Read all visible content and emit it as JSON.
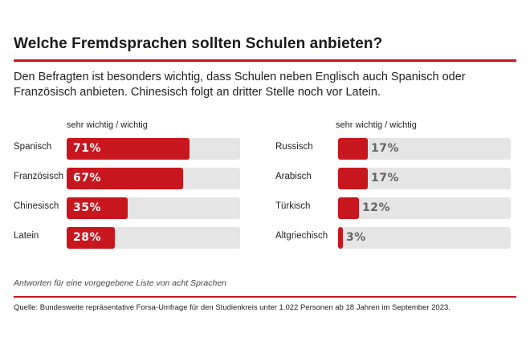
{
  "header": {
    "title": "Welche Fremdsprachen sollten Schulen anbieten?",
    "subtitle": "Den Befragten ist besonders wichtig, dass Schulen neben Englisch auch Spanisch oder Französisch anbieten. Chinesisch folgt an dritter Stelle noch vor Latein."
  },
  "footer": {
    "note": "Antworten für eine vorgegebene Liste von acht Sprachen",
    "source": "Quelle: Bundesweite repräsentative Forsa-Umfrage für den Studienkreis unter 1.022 Personen ab 18 Jahren im September 2023."
  },
  "colors": {
    "accent": "#c8161e",
    "track": "#e5e5e5"
  },
  "chart_data": [
    {
      "type": "bar",
      "orientation": "horizontal",
      "series_label": "sehr wichtig / wichtig",
      "categories": [
        "Spanisch",
        "Französisch",
        "Chinesisch",
        "Latein"
      ],
      "values": [
        71,
        67,
        35,
        28
      ],
      "value_labels": [
        "71%",
        "67%",
        "35%",
        "28%"
      ],
      "xlim": [
        0,
        100
      ]
    },
    {
      "type": "bar",
      "orientation": "horizontal",
      "series_label": "sehr wichtig / wichtig",
      "categories": [
        "Russisch",
        "Arabisch",
        "Türkisch",
        "Altgriechisch"
      ],
      "values": [
        17,
        17,
        12,
        3
      ],
      "value_labels": [
        "17%",
        "17%",
        "12%",
        "3%"
      ],
      "xlim": [
        0,
        100
      ]
    }
  ]
}
